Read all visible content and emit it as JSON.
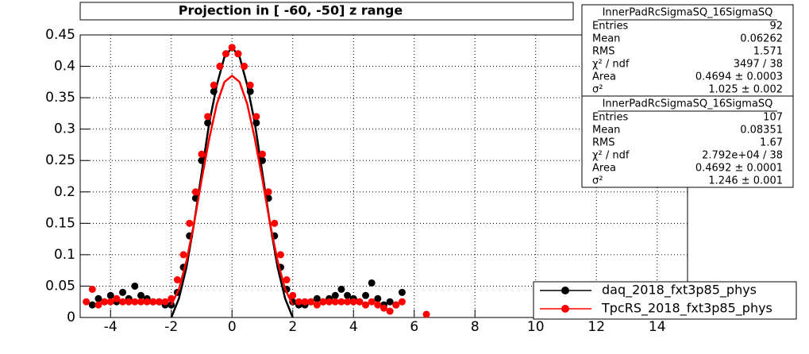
{
  "chart_data": {
    "type": "scatter",
    "title": "Projection in [ -60, -50] z range",
    "xlim": [
      -5,
      15
    ],
    "ylim": [
      0,
      0.45
    ],
    "xticks": [
      -4,
      -2,
      0,
      2,
      4,
      6,
      8,
      10,
      12,
      14
    ],
    "yticks": [
      0,
      0.05,
      0.1,
      0.15,
      0.2,
      0.25,
      0.3,
      0.35,
      0.4,
      0.45
    ],
    "grid": true,
    "legend": "lower right",
    "series": [
      {
        "name": "daq_2018_fxt3p85_phys",
        "color": "#000000",
        "x": [
          -4.6,
          -4.4,
          -4.2,
          -4.0,
          -3.8,
          -3.6,
          -3.4,
          -3.2,
          -3.0,
          -2.8,
          -2.6,
          -2.4,
          -2.2,
          -2.0,
          -1.8,
          -1.6,
          -1.4,
          -1.2,
          -1.0,
          -0.8,
          -0.6,
          -0.4,
          -0.2,
          0,
          0.2,
          0.4,
          0.6,
          0.8,
          1.0,
          1.2,
          1.4,
          1.6,
          1.8,
          2.0,
          2.2,
          2.4,
          2.6,
          2.8,
          3.0,
          3.2,
          3.4,
          3.6,
          3.8,
          4.0,
          4.2,
          4.4,
          4.6,
          4.8,
          5.0,
          5.2,
          5.4,
          5.6
        ],
        "values": [
          0.02,
          0.03,
          0.025,
          0.035,
          0.025,
          0.04,
          0.03,
          0.05,
          0.035,
          0.03,
          0.025,
          0.025,
          0.02,
          0.02,
          0.04,
          0.08,
          0.13,
          0.19,
          0.25,
          0.31,
          0.36,
          0.4,
          0.42,
          0.43,
          0.42,
          0.4,
          0.36,
          0.31,
          0.25,
          0.19,
          0.13,
          0.08,
          0.045,
          0.025,
          0.02,
          0.02,
          0.025,
          0.03,
          0.025,
          0.03,
          0.035,
          0.045,
          0.035,
          0.03,
          0.025,
          0.035,
          0.055,
          0.03,
          0.02,
          0.025,
          0.02,
          0.04
        ],
        "fit_x": [
          -2,
          -1.75,
          -1.5,
          -1.25,
          -1,
          -0.75,
          -0.5,
          -0.25,
          0,
          0.25,
          0.5,
          0.75,
          1,
          1.25,
          1.5,
          1.75,
          2
        ],
        "fit_values": [
          0.0,
          0.03,
          0.08,
          0.15,
          0.23,
          0.31,
          0.37,
          0.415,
          0.43,
          0.415,
          0.37,
          0.31,
          0.23,
          0.15,
          0.08,
          0.03,
          0.0
        ]
      },
      {
        "name": "TpcRS_2018_fxt3p85_phys",
        "color": "#ff0000",
        "x": [
          -4.8,
          -4.6,
          -4.4,
          -4.2,
          -4.0,
          -3.8,
          -3.6,
          -3.4,
          -3.2,
          -3.0,
          -2.8,
          -2.6,
          -2.4,
          -2.2,
          -2.0,
          -1.8,
          -1.6,
          -1.4,
          -1.2,
          -1.0,
          -0.8,
          -0.6,
          -0.4,
          -0.2,
          0,
          0.2,
          0.4,
          0.6,
          0.8,
          1.0,
          1.2,
          1.4,
          1.6,
          1.8,
          2.0,
          2.2,
          2.4,
          2.6,
          2.8,
          3.0,
          3.2,
          3.4,
          3.6,
          3.8,
          4.0,
          4.2,
          4.4,
          4.6,
          4.8,
          5.0,
          5.2,
          5.4,
          5.6,
          6.4
        ],
        "values": [
          0.025,
          0.045,
          0.02,
          0.025,
          0.025,
          0.03,
          0.025,
          0.025,
          0.025,
          0.025,
          0.025,
          0.025,
          0.025,
          0.025,
          0.03,
          0.06,
          0.1,
          0.15,
          0.2,
          0.26,
          0.32,
          0.37,
          0.4,
          0.42,
          0.43,
          0.42,
          0.4,
          0.37,
          0.32,
          0.26,
          0.2,
          0.15,
          0.1,
          0.06,
          0.035,
          0.025,
          0.025,
          0.025,
          0.02,
          0.025,
          0.025,
          0.025,
          0.025,
          0.025,
          0.025,
          0.025,
          0.02,
          0.025,
          0.02,
          0.015,
          0.01,
          0.02,
          0.025,
          0.005
        ],
        "fit_x": [
          -2,
          -1.75,
          -1.5,
          -1.25,
          -1,
          -0.75,
          -0.5,
          -0.25,
          0,
          0.25,
          0.5,
          0.75,
          1,
          1.25,
          1.5,
          1.75,
          2
        ],
        "fit_values": [
          0.02,
          0.045,
          0.09,
          0.15,
          0.22,
          0.285,
          0.34,
          0.375,
          0.385,
          0.375,
          0.34,
          0.285,
          0.22,
          0.15,
          0.09,
          0.045,
          0.02
        ]
      }
    ],
    "stats": [
      {
        "title": "InnerPadRcSigmaSQ_16SigmaSQ",
        "rows": [
          [
            "Entries",
            "92"
          ],
          [
            "Mean",
            "0.06262"
          ],
          [
            "RMS",
            "1.571"
          ],
          [
            "χ² / ndf",
            "3497 / 38"
          ],
          [
            "Area",
            "0.4694 ± 0.0003"
          ],
          [
            "σ²",
            "1.025 ± 0.002"
          ]
        ]
      },
      {
        "title": "InnerPadRcSigmaSQ_16SigmaSQ",
        "rows": [
          [
            "Entries",
            "107"
          ],
          [
            "Mean",
            "0.08351"
          ],
          [
            "RMS",
            "1.67"
          ],
          [
            "χ² / ndf",
            "2.792e+04 / 38"
          ],
          [
            "Area",
            "0.4692 ± 0.0001"
          ],
          [
            "σ²",
            "1.246 ± 0.001"
          ]
        ]
      }
    ]
  }
}
